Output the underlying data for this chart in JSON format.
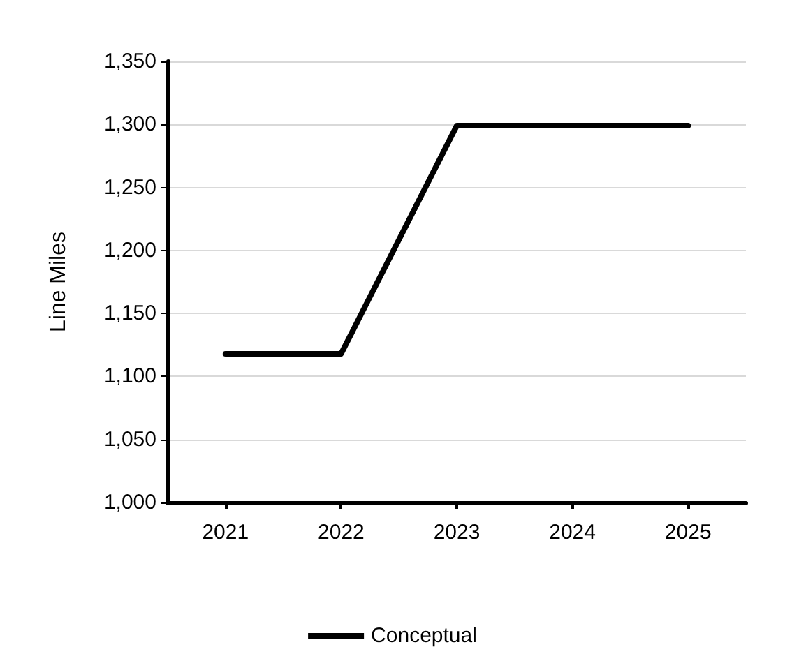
{
  "chart_data": {
    "type": "line",
    "ylabel": "Line Miles",
    "categories": [
      "2021",
      "2022",
      "2023",
      "2024",
      "2025"
    ],
    "series": [
      {
        "name": "Conceptual",
        "color": "#000000",
        "values": [
          1118,
          1118,
          1299,
          1299,
          1299
        ]
      }
    ],
    "ylim": [
      1000,
      1350
    ],
    "yticks": [
      {
        "value": 1000,
        "label": "1,000"
      },
      {
        "value": 1050,
        "label": "1,050"
      },
      {
        "value": 1100,
        "label": "1,100"
      },
      {
        "value": 1150,
        "label": "1,150"
      },
      {
        "value": 1200,
        "label": "1,200"
      },
      {
        "value": 1250,
        "label": "1,250"
      },
      {
        "value": 1300,
        "label": "1,300"
      },
      {
        "value": 1350,
        "label": "1,350"
      }
    ],
    "grid": "y",
    "legend": "bottom",
    "marker": "none",
    "line_style": "solid"
  }
}
